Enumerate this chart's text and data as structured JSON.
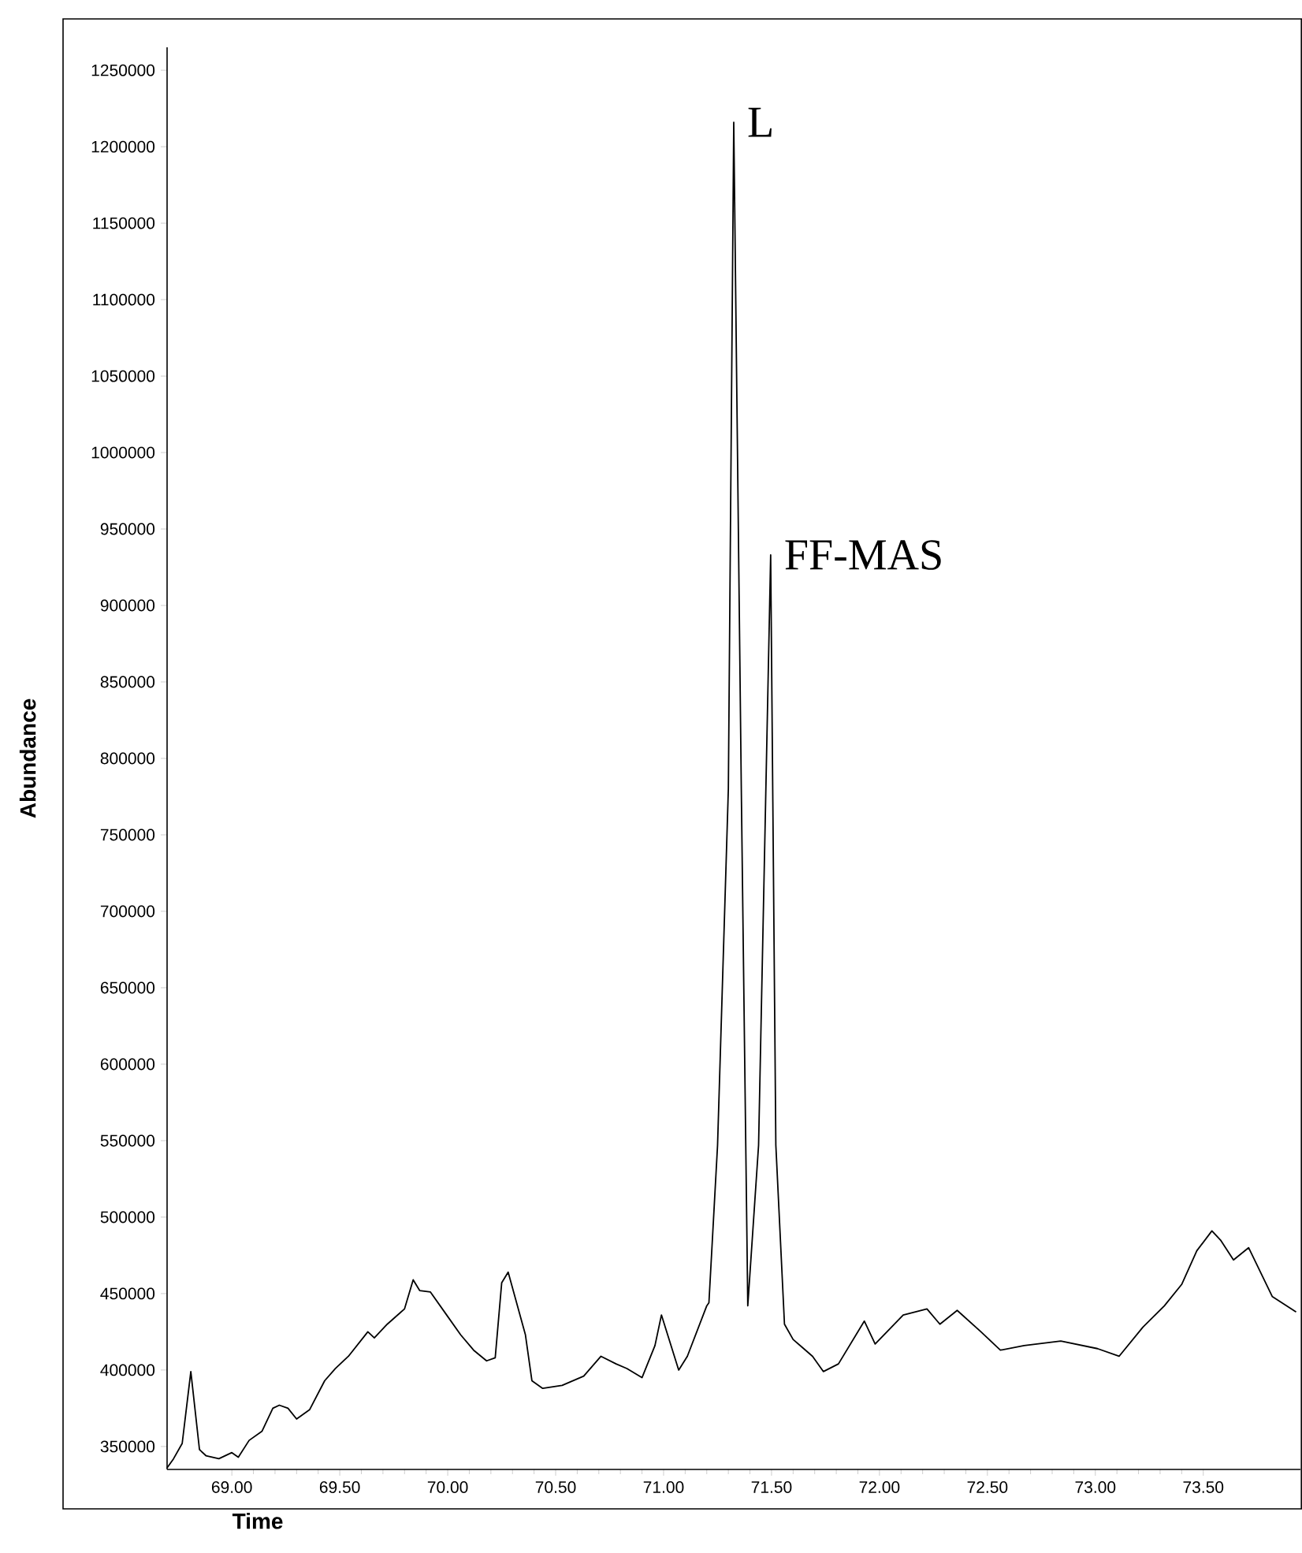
{
  "chart_data": {
    "type": "line",
    "xlabel": "Time",
    "ylabel": "Abundance",
    "xlim": [
      68.7,
      73.95
    ],
    "ylim": [
      335000,
      1265000
    ],
    "xticks": [
      {
        "value": 69,
        "label": "69.00"
      },
      {
        "value": 69.5,
        "label": "69.50"
      },
      {
        "value": 70,
        "label": "70.00"
      },
      {
        "value": 70.5,
        "label": "70.50"
      },
      {
        "value": 71,
        "label": "71.00"
      },
      {
        "value": 71.5,
        "label": "71.50"
      },
      {
        "value": 72,
        "label": "72.00"
      },
      {
        "value": 72.5,
        "label": "72.50"
      },
      {
        "value": 73,
        "label": "73.00"
      },
      {
        "value": 73.5,
        "label": "73.50"
      }
    ],
    "yticks": [
      350000,
      400000,
      450000,
      500000,
      550000,
      600000,
      650000,
      700000,
      750000,
      800000,
      850000,
      900000,
      950000,
      1000000,
      1050000,
      1100000,
      1150000,
      1200000,
      1250000
    ],
    "series": [
      {
        "color": "#000000",
        "x": [
          68.7,
          68.73,
          68.77,
          68.81,
          68.85,
          68.88,
          68.94,
          69.0,
          69.03,
          69.08,
          69.14,
          69.19,
          69.22,
          69.26,
          69.3,
          69.36,
          69.43,
          69.48,
          69.54,
          69.63,
          69.66,
          69.72,
          69.8,
          69.84,
          69.87,
          69.92,
          69.99,
          70.06,
          70.12,
          70.18,
          70.22,
          70.25,
          70.28,
          70.36,
          70.39,
          70.44,
          70.53,
          70.63,
          70.71,
          70.78,
          70.83,
          70.9,
          70.96,
          70.99,
          71.07,
          71.11,
          71.2,
          71.21,
          71.25,
          71.3,
          71.325,
          71.36,
          71.39,
          71.44,
          71.496,
          71.52,
          71.56,
          71.6,
          71.69,
          71.74,
          71.81,
          71.93,
          71.98,
          72.11,
          72.22,
          72.28,
          72.36,
          72.47,
          72.56,
          72.67,
          72.84,
          73.01,
          73.11,
          73.22,
          73.32,
          73.4,
          73.47,
          73.54,
          73.58,
          73.64,
          73.71,
          73.82,
          73.93
        ],
        "values": [
          336000,
          342000,
          352000,
          399000,
          348000,
          344000,
          342000,
          346000,
          343000,
          354000,
          360000,
          375000,
          377000,
          375000,
          368000,
          374000,
          393000,
          401000,
          409000,
          425000,
          421000,
          430000,
          440000,
          459000,
          452000,
          451000,
          437000,
          423000,
          413000,
          406000,
          408000,
          457000,
          464000,
          423000,
          393000,
          388000,
          390000,
          396000,
          409000,
          404000,
          401000,
          395000,
          416000,
          436000,
          400000,
          409000,
          442000,
          444000,
          547000,
          780000,
          1216000,
          780000,
          442000,
          547000,
          933000,
          547000,
          430000,
          420000,
          409000,
          399000,
          404000,
          432000,
          417000,
          436000,
          440000,
          430000,
          439000,
          425000,
          413000,
          416000,
          419000,
          414000,
          409000,
          428000,
          442000,
          456000,
          478000,
          491000,
          485000,
          472000,
          480000,
          448000,
          438000
        ]
      }
    ],
    "annotations": [
      {
        "text": "L",
        "x": 71.325,
        "y": 1216000
      },
      {
        "text": "FF-MAS",
        "x": 71.496,
        "y": 933000
      }
    ]
  }
}
